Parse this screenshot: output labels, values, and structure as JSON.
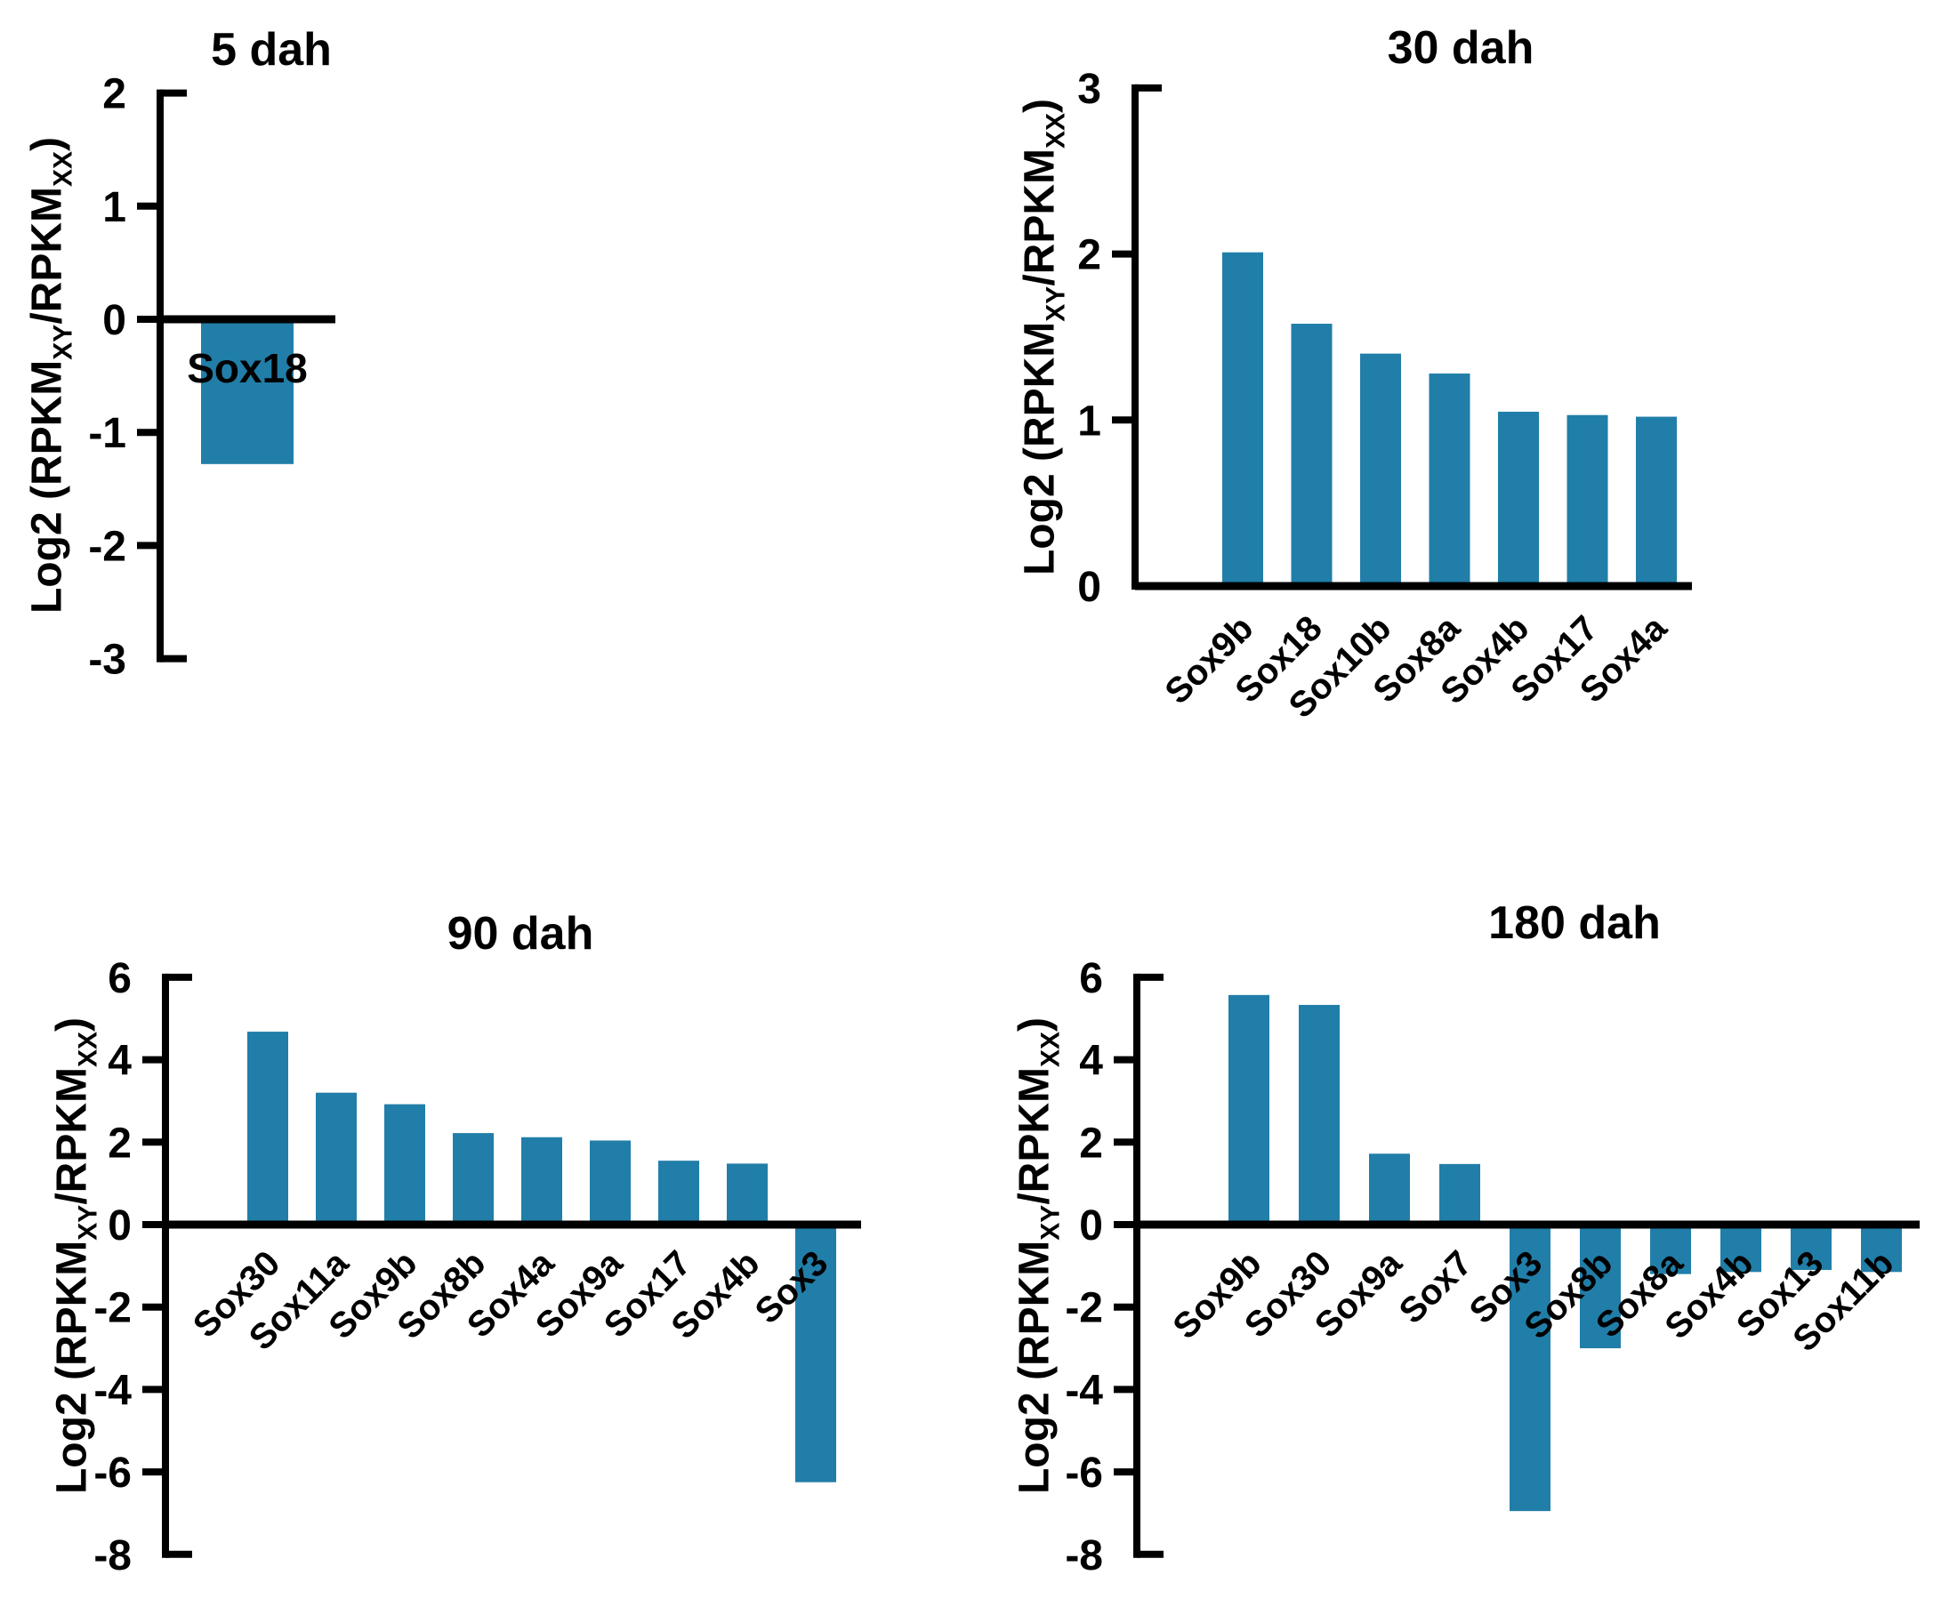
{
  "figure": {
    "background": "#ffffff",
    "bar_color": "#217ea8",
    "axis_color": "#000000",
    "text_color": "#000000"
  },
  "ylabel": {
    "pre": "Log2 (RPKM",
    "sub_xy": "XY",
    "mid": "/RPKM",
    "sub_xx": "XX",
    "post": ")"
  },
  "chart_data": [
    {
      "type": "bar",
      "title": "5 dah",
      "ylabel": "Log2 (RPKM_XY/RPKM_XX)",
      "categories": [
        "Sox18"
      ],
      "values": [
        -1.28
      ],
      "yticks": [
        2,
        1,
        0,
        -1,
        -2,
        -3
      ],
      "ylim": [
        -3,
        2
      ],
      "grid": false,
      "legend": "none",
      "bar_label_position": "inside-bar"
    },
    {
      "type": "bar",
      "title": "30 dah",
      "ylabel": "Log2 (RPKM_XY/RPKM_XX)",
      "categories": [
        "Sox9b",
        "Sox18",
        "Sox10b",
        "Sox8a",
        "Sox4b",
        "Sox17",
        "Sox4a"
      ],
      "values": [
        2.01,
        1.58,
        1.4,
        1.28,
        1.05,
        1.03,
        1.02
      ],
      "yticks": [
        3,
        2,
        1,
        0
      ],
      "ylim": [
        0,
        3
      ],
      "grid": false,
      "legend": "none",
      "bar_label_position": "rotated-below-axis"
    },
    {
      "type": "bar",
      "title": "90 dah",
      "ylabel": "Log2 (RPKM_XY/RPKM_XX)",
      "categories": [
        "Sox30",
        "Sox11a",
        "Sox9b",
        "Sox8b",
        "Sox4a",
        "Sox9a",
        "Sox17",
        "Sox4b",
        "Sox3"
      ],
      "values": [
        4.68,
        3.2,
        2.92,
        2.22,
        2.12,
        2.04,
        1.55,
        1.48,
        -6.25
      ],
      "yticks": [
        6,
        4,
        2,
        0,
        -2,
        -4,
        -6,
        -8
      ],
      "ylim": [
        -8,
        6
      ],
      "grid": false,
      "legend": "none",
      "bar_label_position": "rotated-below-axis"
    },
    {
      "type": "bar",
      "title": "180 dah",
      "ylabel": "Log2 (RPKM_XY/RPKM_XX)",
      "categories": [
        "Sox9b",
        "Sox30",
        "Sox9a",
        "Sox7",
        "Sox3",
        "Sox8b",
        "Sox8a",
        "Sox4b",
        "Sox13",
        "Sox11b"
      ],
      "values": [
        5.57,
        5.33,
        1.72,
        1.47,
        -6.95,
        -3.0,
        -1.2,
        -1.15,
        -1.1,
        -1.15
      ],
      "yticks": [
        6,
        4,
        2,
        0,
        -2,
        -4,
        -6,
        -8
      ],
      "ylim": [
        -8,
        6
      ],
      "grid": false,
      "legend": "none",
      "bar_label_position": "rotated-below-axis"
    }
  ]
}
